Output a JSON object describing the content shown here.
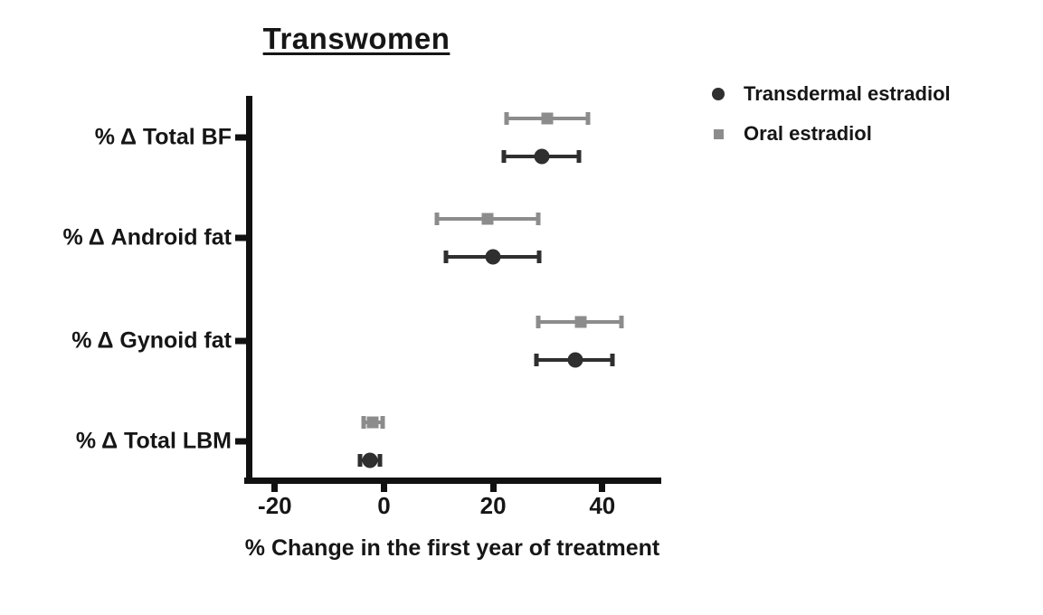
{
  "title": "Transwomen",
  "xlabel": "% Change in the first year of treatment",
  "colors": {
    "transdermal": "#2f2f2f",
    "oral": "#8c8c8c",
    "axis": "#111111"
  },
  "legend": {
    "items": [
      {
        "label": "Transdermal estradiol",
        "marker": "circle",
        "color": "#2f2f2f"
      },
      {
        "label": "Oral estradiol",
        "marker": "square",
        "color": "#8c8c8c"
      }
    ]
  },
  "chart_data": {
    "type": "scatter",
    "subtype": "forest-plot-horizontal-error-bars",
    "title": "Transwomen",
    "xlabel": "% Change in the first year of treatment",
    "ylabel": "",
    "categories": [
      "% Δ Total BF",
      "% Δ Android fat",
      "% Δ Gynoid fat",
      "% Δ Total LBM"
    ],
    "x_ticks": [
      "-20",
      "0",
      "20",
      "40"
    ],
    "xlim": [
      -25.5,
      50.5
    ],
    "grid": false,
    "legend_position": "upper-right-outside",
    "series": [
      {
        "name": "Oral estradiol",
        "marker": "square",
        "color": "#8c8c8c",
        "points": [
          {
            "category": "% Δ Total BF",
            "mean": 30,
            "lo": 22.5,
            "hi": 37.3
          },
          {
            "category": "% Δ Android fat",
            "mean": 19,
            "lo": 9.7,
            "hi": 28.2
          },
          {
            "category": "% Δ Gynoid fat",
            "mean": 36,
            "lo": 28.2,
            "hi": 43.5
          },
          {
            "category": "% Δ Total LBM",
            "mean": -2,
            "lo": -3.7,
            "hi": -0.3
          }
        ]
      },
      {
        "name": "Transdermal estradiol",
        "marker": "circle",
        "color": "#2f2f2f",
        "points": [
          {
            "category": "% Δ Total BF",
            "mean": 29,
            "lo": 22,
            "hi": 35.7
          },
          {
            "category": "% Δ Android fat",
            "mean": 20,
            "lo": 11.3,
            "hi": 28.5
          },
          {
            "category": "% Δ Gynoid fat",
            "mean": 35,
            "lo": 27.9,
            "hi": 41.8
          },
          {
            "category": "% Δ Total LBM",
            "mean": -2.6,
            "lo": -4.4,
            "hi": -0.8
          }
        ]
      }
    ]
  }
}
